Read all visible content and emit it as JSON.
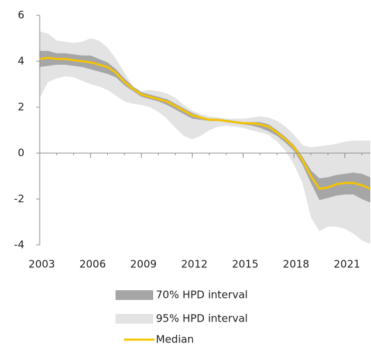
{
  "chart_data": {
    "type": "line",
    "x": [
      2003,
      2003.5,
      2004,
      2004.5,
      2005,
      2005.5,
      2006,
      2006.5,
      2007,
      2007.5,
      2008,
      2008.5,
      2009,
      2009.5,
      2010,
      2010.5,
      2011,
      2011.5,
      2012,
      2012.5,
      2013,
      2013.5,
      2014,
      2014.5,
      2015,
      2015.5,
      2016,
      2016.5,
      2017,
      2017.5,
      2018,
      2018.5,
      2019,
      2019.5,
      2020,
      2020.5,
      2021,
      2021.5,
      2022,
      2022.5
    ],
    "bands": [
      {
        "name": "95% HPD interval",
        "color": "#e3e3e3",
        "upper": [
          5.3,
          5.2,
          4.9,
          4.85,
          4.8,
          4.85,
          5.0,
          4.9,
          4.6,
          4.1,
          3.5,
          2.9,
          2.7,
          2.75,
          2.7,
          2.6,
          2.4,
          2.1,
          1.85,
          1.7,
          1.6,
          1.55,
          1.5,
          1.5,
          1.5,
          1.55,
          1.6,
          1.55,
          1.4,
          1.15,
          0.8,
          0.35,
          0.25,
          0.3,
          0.35,
          0.4,
          0.5,
          0.55,
          0.55,
          0.55
        ],
        "lower": [
          2.4,
          3.1,
          3.25,
          3.35,
          3.3,
          3.15,
          3.0,
          2.9,
          2.75,
          2.5,
          2.25,
          2.15,
          2.1,
          2.0,
          1.8,
          1.5,
          1.1,
          0.75,
          0.6,
          0.75,
          1.0,
          1.15,
          1.2,
          1.15,
          1.1,
          1.0,
          0.9,
          0.8,
          0.5,
          0.1,
          -0.5,
          -1.3,
          -2.8,
          -3.4,
          -3.2,
          -3.2,
          -3.3,
          -3.5,
          -3.8,
          -3.95
        ]
      },
      {
        "name": "70% HPD interval",
        "color": "#a6a6a6",
        "upper": [
          4.45,
          4.45,
          4.35,
          4.35,
          4.3,
          4.25,
          4.25,
          4.1,
          3.95,
          3.65,
          3.25,
          2.9,
          2.65,
          2.55,
          2.45,
          2.35,
          2.15,
          1.95,
          1.75,
          1.6,
          1.5,
          1.5,
          1.45,
          1.4,
          1.35,
          1.35,
          1.35,
          1.25,
          1.0,
          0.7,
          0.35,
          -0.15,
          -0.75,
          -1.1,
          -1.05,
          -0.95,
          -0.9,
          -0.85,
          -0.9,
          -1.05
        ],
        "lower": [
          3.75,
          3.8,
          3.85,
          3.85,
          3.8,
          3.75,
          3.65,
          3.55,
          3.45,
          3.3,
          2.95,
          2.7,
          2.45,
          2.35,
          2.25,
          2.1,
          1.9,
          1.7,
          1.5,
          1.45,
          1.4,
          1.4,
          1.35,
          1.3,
          1.25,
          1.2,
          1.1,
          0.95,
          0.75,
          0.45,
          0.1,
          -0.5,
          -1.3,
          -2.05,
          -1.95,
          -1.85,
          -1.8,
          -1.8,
          -2.0,
          -2.15
        ]
      }
    ],
    "series": [
      {
        "name": "Median",
        "color": "#f5c400",
        "values": [
          4.1,
          4.15,
          4.1,
          4.1,
          4.05,
          4.0,
          3.95,
          3.85,
          3.75,
          3.5,
          3.1,
          2.8,
          2.55,
          2.45,
          2.35,
          2.25,
          2.05,
          1.85,
          1.65,
          1.55,
          1.45,
          1.45,
          1.4,
          1.35,
          1.3,
          1.3,
          1.25,
          1.15,
          0.9,
          0.6,
          0.25,
          -0.3,
          -1.0,
          -1.55,
          -1.5,
          -1.35,
          -1.3,
          -1.3,
          -1.4,
          -1.55
        ]
      }
    ],
    "xlim": [
      2003,
      2022.5
    ],
    "xticks": [
      2003,
      2006,
      2009,
      2012,
      2015,
      2018,
      2021
    ],
    "ylim": [
      -4,
      6
    ],
    "yticks": [
      -4,
      -2,
      0,
      2,
      4,
      6
    ]
  }
}
